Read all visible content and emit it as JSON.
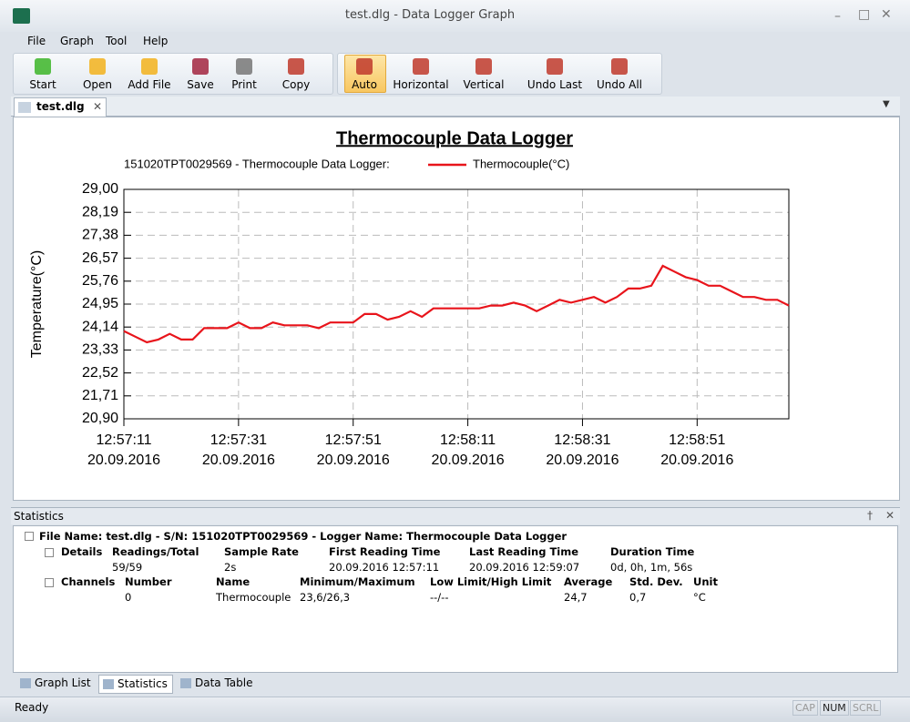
{
  "window": {
    "title": "test.dlg - Data Logger Graph"
  },
  "menu": [
    "File",
    "Graph",
    "Tool",
    "Help"
  ],
  "toolbar": [
    "Start",
    "Open",
    "Add File",
    "Save",
    "Print",
    "Copy"
  ],
  "zoom_toolbar": [
    "Auto",
    "Horizontal",
    "Vertical",
    "Undo Last",
    "Undo All"
  ],
  "tab": "test.dlg",
  "chart_data": {
    "type": "line",
    "title": "Thermocouple Data Logger",
    "legend_prefix": "151020TPT0029569 - Thermocouple Data Logger:",
    "y_label": "Temperature(°C)",
    "x": [
      "12:57:11",
      "12:57:13",
      "12:57:15",
      "12:57:17",
      "12:57:19",
      "12:57:21",
      "12:57:23",
      "12:57:25",
      "12:57:27",
      "12:57:29",
      "12:57:31",
      "12:57:33",
      "12:57:35",
      "12:57:37",
      "12:57:39",
      "12:57:41",
      "12:57:43",
      "12:57:45",
      "12:57:47",
      "12:57:49",
      "12:57:51",
      "12:57:53",
      "12:57:55",
      "12:57:57",
      "12:57:59",
      "12:58:01",
      "12:58:03",
      "12:58:05",
      "12:58:07",
      "12:58:09",
      "12:58:11",
      "12:58:13",
      "12:58:15",
      "12:58:17",
      "12:58:19",
      "12:58:21",
      "12:58:23",
      "12:58:25",
      "12:58:27",
      "12:58:29",
      "12:58:31",
      "12:58:33",
      "12:58:35",
      "12:58:37",
      "12:58:39",
      "12:58:41",
      "12:58:43",
      "12:58:45",
      "12:58:47",
      "12:58:49",
      "12:58:51",
      "12:58:53",
      "12:58:55",
      "12:58:57",
      "12:58:59",
      "12:59:01",
      "12:59:03",
      "12:59:05",
      "12:59:07"
    ],
    "series": [
      {
        "name": "Thermocouple(°C)",
        "color": "#e8141b",
        "values": [
          24.0,
          23.8,
          23.6,
          23.7,
          23.9,
          23.7,
          23.7,
          24.1,
          24.1,
          24.1,
          24.3,
          24.1,
          24.1,
          24.3,
          24.2,
          24.2,
          24.2,
          24.1,
          24.3,
          24.3,
          24.3,
          24.6,
          24.6,
          24.4,
          24.5,
          24.7,
          24.5,
          24.8,
          24.8,
          24.8,
          24.8,
          24.8,
          24.9,
          24.9,
          25.0,
          24.9,
          24.7,
          24.9,
          25.1,
          25.0,
          25.1,
          25.2,
          25.0,
          25.2,
          25.5,
          25.5,
          25.6,
          26.3,
          26.1,
          25.9,
          25.8,
          25.6,
          25.6,
          25.4,
          25.2,
          25.2,
          25.1,
          25.1,
          24.9
        ]
      }
    ],
    "ylim": [
      20.9,
      29.0
    ],
    "yticks": [
      {
        "value": 20.9,
        "label": "20,90"
      },
      {
        "value": 21.71,
        "label": "21,71"
      },
      {
        "value": 22.52,
        "label": "22,52"
      },
      {
        "value": 23.33,
        "label": "23,33"
      },
      {
        "value": 24.14,
        "label": "24,14"
      },
      {
        "value": 24.95,
        "label": "24,95"
      },
      {
        "value": 25.76,
        "label": "25,76"
      },
      {
        "value": 26.57,
        "label": "26,57"
      },
      {
        "value": 27.38,
        "label": "27,38"
      },
      {
        "value": 28.19,
        "label": "28,19"
      },
      {
        "value": 29.0,
        "label": "29,00"
      }
    ],
    "xlim": [
      "12:57:11",
      "12:59:07"
    ],
    "xticks": [
      {
        "value": "12:57:11",
        "label": "12:57:11\n20.09.2016"
      },
      {
        "value": "12:57:31",
        "label": "12:57:31\n20.09.2016"
      },
      {
        "value": "12:57:51",
        "label": "12:57:51\n20.09.2016"
      },
      {
        "value": "12:58:11",
        "label": "12:58:11\n20.09.2016"
      },
      {
        "value": "12:58:31",
        "label": "12:58:31\n20.09.2016"
      },
      {
        "value": "12:58:51",
        "label": "12:58:51\n20.09.2016"
      }
    ],
    "grid": true
  },
  "statistics": {
    "title": "Statistics",
    "file": "File Name: test.dlg - S/N: 151020TPT0029569 - Logger Name: Thermocouple Data Logger",
    "details": {
      "label": "Details",
      "headers": [
        "Readings/Total",
        "Sample Rate",
        "First Reading Time",
        "Last Reading Time",
        "Duration Time"
      ],
      "row": [
        "59/59",
        "2s",
        "20.09.2016 12:57:11",
        "20.09.2016 12:59:07",
        "0d, 0h, 1m, 56s"
      ]
    },
    "channels": {
      "label": "Channels",
      "headers": [
        "Number",
        "Name",
        "Minimum/Maximum",
        "Low Limit/High Limit",
        "Average",
        "Std. Dev.",
        "Unit"
      ],
      "row": [
        "0",
        "Thermocouple",
        "23,6/26,3",
        "--/--",
        "24,7",
        "0,7",
        "°C"
      ]
    }
  },
  "bottom_tabs": [
    "Graph List",
    "Statistics",
    "Data Table"
  ],
  "status": {
    "text": "Ready",
    "indicators": [
      "CAP",
      "NUM",
      "SCRL"
    ]
  }
}
